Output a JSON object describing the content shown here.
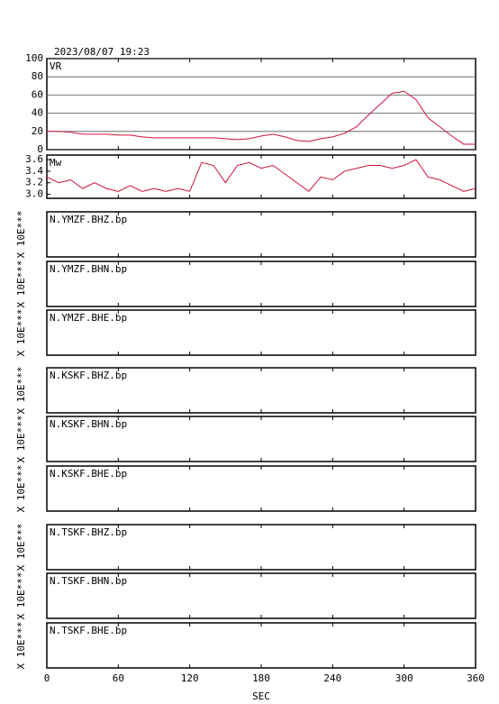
{
  "title": "2023/08/07 19:23",
  "x_axis": {
    "label": "SEC",
    "xlim": [
      0,
      360
    ],
    "xticks": [
      0,
      60,
      120,
      180,
      240,
      300,
      360
    ]
  },
  "chart_data": [
    {
      "type": "line",
      "label": "VR",
      "color": "#d0103a",
      "grid": true,
      "x": [
        0,
        10,
        20,
        30,
        40,
        50,
        60,
        70,
        80,
        90,
        100,
        110,
        120,
        130,
        140,
        150,
        160,
        170,
        180,
        190,
        200,
        210,
        220,
        230,
        240,
        250,
        260,
        270,
        280,
        290,
        300,
        310,
        320,
        330,
        340,
        350,
        360
      ],
      "values": [
        20,
        20,
        19,
        17,
        17,
        17,
        16,
        16,
        14,
        13,
        13,
        13,
        13,
        13,
        13,
        12,
        11,
        12,
        15,
        17,
        14,
        10,
        9,
        12,
        14,
        18,
        25,
        38,
        50,
        62,
        64,
        55,
        35,
        25,
        15,
        6,
        6
      ],
      "ylim": [
        0,
        100
      ],
      "yticks": [
        0,
        20,
        40,
        60,
        80,
        100
      ]
    },
    {
      "type": "line",
      "label": "Mw",
      "color": "#d0103a",
      "grid": false,
      "x": [
        0,
        10,
        20,
        30,
        40,
        50,
        60,
        70,
        80,
        90,
        100,
        110,
        120,
        130,
        140,
        150,
        160,
        170,
        180,
        190,
        200,
        210,
        220,
        230,
        240,
        250,
        260,
        270,
        280,
        290,
        300,
        310,
        320,
        330,
        340,
        350,
        360
      ],
      "values": [
        3.3,
        3.2,
        3.25,
        3.1,
        3.2,
        3.1,
        3.05,
        3.15,
        3.05,
        3.1,
        3.05,
        3.1,
        3.05,
        3.55,
        3.5,
        3.2,
        3.5,
        3.55,
        3.45,
        3.5,
        3.35,
        3.2,
        3.05,
        3.3,
        3.25,
        3.4,
        3.45,
        3.5,
        3.5,
        3.45,
        3.5,
        3.6,
        3.3,
        3.25,
        3.15,
        3.05,
        3.1
      ],
      "ylim": [
        2.93,
        3.68
      ],
      "yticks": [
        {
          "value": 3,
          "label": "3.0"
        },
        3.2,
        3.4,
        3.6
      ]
    }
  ],
  "panels": [
    {
      "label": "N.YMZF.BHZ.bp",
      "ylabel": "X 10E***"
    },
    {
      "label": "N.YMZF.BHN.bp",
      "ylabel": "X 10E***"
    },
    {
      "label": "N.YMZF.BHE.bp",
      "ylabel": "X 10E***"
    },
    {
      "label": "N.KSKF.BHZ.bp",
      "ylabel": "X 10E***"
    },
    {
      "label": "N.KSKF.BHN.bp",
      "ylabel": "X 10E***"
    },
    {
      "label": "N.KSKF.BHE.bp",
      "ylabel": "X 10E***"
    },
    {
      "label": "N.TSKF.BHZ.bp",
      "ylabel": "X 10E***"
    },
    {
      "label": "N.TSKF.BHN.bp",
      "ylabel": "X 10E***"
    },
    {
      "label": "N.TSKF.BHE.bp",
      "ylabel": "X 10E***"
    }
  ]
}
